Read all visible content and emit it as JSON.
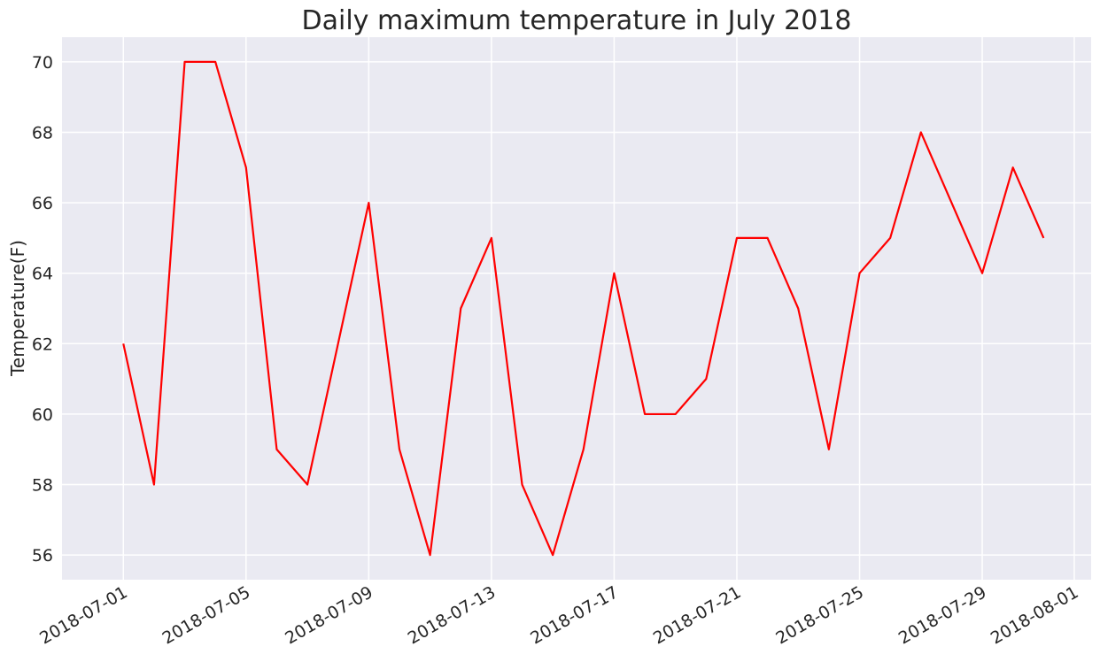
{
  "chart_data": {
    "type": "line",
    "title": "Daily maximum temperature in July 2018",
    "xlabel": "",
    "ylabel": "Temperature(F)",
    "x": [
      "2018-07-01",
      "2018-07-02",
      "2018-07-03",
      "2018-07-04",
      "2018-07-05",
      "2018-07-06",
      "2018-07-07",
      "2018-07-08",
      "2018-07-09",
      "2018-07-10",
      "2018-07-11",
      "2018-07-12",
      "2018-07-13",
      "2018-07-14",
      "2018-07-15",
      "2018-07-16",
      "2018-07-17",
      "2018-07-18",
      "2018-07-19",
      "2018-07-20",
      "2018-07-21",
      "2018-07-22",
      "2018-07-23",
      "2018-07-24",
      "2018-07-25",
      "2018-07-26",
      "2018-07-27",
      "2018-07-28",
      "2018-07-29",
      "2018-07-30",
      "2018-07-31"
    ],
    "series": [
      {
        "values": [
          62,
          58,
          70,
          70,
          67,
          59,
          58,
          62,
          66,
          59,
          56,
          63,
          65,
          58,
          56,
          59,
          64,
          60,
          60,
          61,
          65,
          65,
          63,
          59,
          64,
          65,
          68,
          66,
          64,
          67,
          65
        ],
        "color": "#ff0000"
      }
    ],
    "xlim": [
      "2018-06-29",
      "2018-08-01"
    ],
    "ylim": [
      55.3,
      70.7
    ],
    "xticks": [
      "2018-07-01",
      "2018-07-05",
      "2018-07-09",
      "2018-07-13",
      "2018-07-17",
      "2018-07-21",
      "2018-07-25",
      "2018-07-29",
      "2018-08-01"
    ],
    "yticks": [
      56,
      58,
      60,
      62,
      64,
      66,
      68,
      70
    ],
    "grid": true,
    "background": "#eaeaf2",
    "grid_color": "#ffffff"
  }
}
